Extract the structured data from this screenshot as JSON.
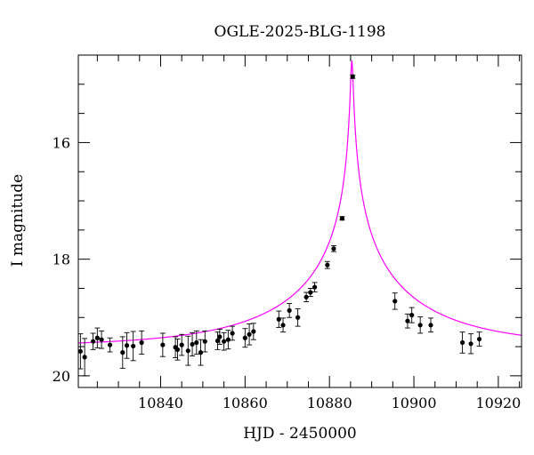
{
  "chart_data": {
    "type": "scatter",
    "title": "OGLE-2025-BLG-1198",
    "xlabel": "HJD - 2450000",
    "ylabel": "I magnitude",
    "xlim": [
      10820.5,
      10925.5
    ],
    "ylim": [
      20.2,
      14.5
    ],
    "y_inverted": true,
    "grid": false,
    "x_ticks": [
      10840,
      10860,
      10880,
      10900,
      10920
    ],
    "x_tick_labels": [
      "10840",
      "10860",
      "10880",
      "10900",
      "10920"
    ],
    "x_minor_step": 5,
    "y_ticks": [
      16,
      18,
      20
    ],
    "y_tick_labels": [
      "16",
      "18",
      "20"
    ],
    "y_minor_step": 0.5,
    "point_color": "#000000",
    "model_color": "#ff00ff",
    "model": {
      "type": "microlensing-pspl",
      "t0": 10885.3,
      "u0": 0.008,
      "tE": 36,
      "baseline_mag": 19.5,
      "blend_fraction": 0.27
    },
    "series": [
      {
        "x": [
          10821.0,
          10822.0,
          10824.0,
          10825.0,
          10826.0,
          10828.0,
          10831.0,
          10832.0,
          10833.5,
          10835.5,
          10840.5,
          10843.5,
          10844.0,
          10845.0,
          10846.5,
          10847.5,
          10848.5,
          10849.5,
          10850.5,
          10853.5,
          10854.0,
          10855.0,
          10856.0,
          10857.0,
          10860.0,
          10861.0,
          10862.0,
          10868.0,
          10869.0,
          10870.5,
          10872.5,
          10874.5,
          10875.5,
          10876.5,
          10879.5,
          10881.0,
          10883.0,
          10885.5,
          10895.5,
          10898.5,
          10899.5,
          10901.5,
          10904.0,
          10911.5,
          10913.5,
          10915.5
        ],
        "y": [
          19.58,
          19.68,
          19.41,
          19.35,
          19.38,
          19.47,
          19.6,
          19.48,
          19.49,
          19.43,
          19.47,
          19.51,
          19.55,
          19.47,
          19.57,
          19.46,
          19.43,
          19.6,
          19.41,
          19.4,
          19.33,
          19.41,
          19.38,
          19.27,
          19.35,
          19.29,
          19.24,
          19.03,
          19.13,
          18.88,
          19.0,
          18.65,
          18.57,
          18.48,
          18.1,
          17.82,
          17.3,
          14.87,
          18.72,
          19.06,
          18.96,
          19.13,
          19.13,
          19.43,
          19.45,
          19.37
        ],
        "y_err": [
          0.3,
          0.32,
          0.14,
          0.17,
          0.15,
          0.12,
          0.27,
          0.22,
          0.25,
          0.2,
          0.2,
          0.18,
          0.18,
          0.18,
          0.25,
          0.2,
          0.2,
          0.22,
          0.18,
          0.15,
          0.13,
          0.15,
          0.16,
          0.12,
          0.16,
          0.18,
          0.14,
          0.14,
          0.12,
          0.12,
          0.15,
          0.08,
          0.07,
          0.08,
          0.06,
          0.05,
          0.03,
          0.03,
          0.14,
          0.12,
          0.13,
          0.14,
          0.12,
          0.18,
          0.17,
          0.12
        ]
      }
    ]
  }
}
